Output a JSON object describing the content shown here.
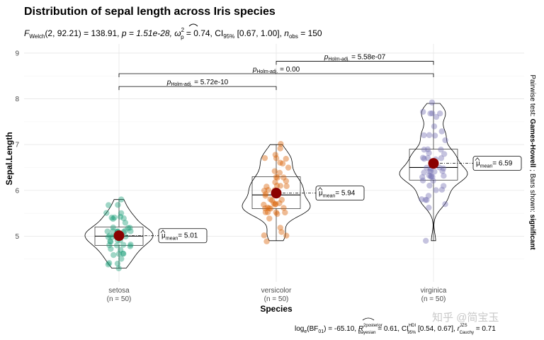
{
  "chart_data": {
    "type": "violin",
    "title": "Distribution of sepal length across Iris species",
    "subtitle": "F_Welch(2, 92.21) = 138.91, p = 1.51e-28, ω̂²_p = 0.74, CI95% [0.67, 1.00], n_obs = 150",
    "subtitle_parts": {
      "f_stat": "F",
      "f_sub": "Welch",
      "f_args": "(2, 92.21) = 138.91, ",
      "p_part": "p = 1.51e-28, ",
      "omega": "ω",
      "omega_sup": "2",
      "omega_sub": "p",
      "omega_val": " = 0.74, CI",
      "ci_sub": "95%",
      "ci_val": " [0.67, 1.00], ",
      "n_obs": "n",
      "n_sub": "obs",
      "n_val": " = 150"
    },
    "xlabel": "Species",
    "ylabel": "Sepal.Length",
    "ylim": [
      4.0,
      9.2
    ],
    "yticks": [
      "5",
      "6",
      "7",
      "8",
      "9"
    ],
    "yticks_values": [
      5,
      6,
      7,
      8,
      9
    ],
    "grid": true,
    "categories": [
      "setosa",
      "versicolor",
      "virginica"
    ],
    "counts": [
      "(n = 50)",
      "(n = 50)",
      "(n = 50)"
    ],
    "colors": [
      "#1B9E77",
      "#D95F02",
      "#7570B3"
    ],
    "mean_color": "#8B0000",
    "means": [
      5.01,
      5.94,
      6.59
    ],
    "mean_labels": [
      "= 5.01",
      "= 5.94",
      "= 6.59"
    ],
    "mean_symbol": "μ",
    "mean_sub": "mean",
    "boxplots": [
      {
        "min": 4.3,
        "q1": 4.8,
        "median": 5.0,
        "q3": 5.2,
        "max": 5.8
      },
      {
        "min": 4.9,
        "q1": 5.6,
        "median": 5.9,
        "q3": 6.3,
        "max": 7.0
      },
      {
        "min": 4.9,
        "q1": 6.225,
        "median": 6.5,
        "q3": 6.9,
        "max": 7.9
      }
    ],
    "points": [
      [
        4.3,
        4.4,
        4.4,
        4.4,
        4.5,
        4.6,
        4.6,
        4.6,
        4.6,
        4.7,
        4.7,
        4.8,
        4.8,
        4.8,
        4.8,
        4.8,
        4.9,
        4.9,
        4.9,
        4.9,
        5.0,
        5.0,
        5.0,
        5.0,
        5.0,
        5.0,
        5.0,
        5.0,
        5.1,
        5.1,
        5.1,
        5.1,
        5.1,
        5.1,
        5.1,
        5.1,
        5.2,
        5.2,
        5.2,
        5.3,
        5.4,
        5.4,
        5.4,
        5.4,
        5.4,
        5.5,
        5.5,
        5.7,
        5.7,
        5.8
      ],
      [
        4.9,
        5.0,
        5.0,
        5.1,
        5.2,
        5.4,
        5.5,
        5.5,
        5.5,
        5.5,
        5.5,
        5.6,
        5.6,
        5.6,
        5.6,
        5.6,
        5.7,
        5.7,
        5.7,
        5.7,
        5.7,
        5.8,
        5.8,
        5.8,
        5.9,
        5.9,
        6.0,
        6.0,
        6.0,
        6.0,
        6.1,
        6.1,
        6.1,
        6.1,
        6.2,
        6.2,
        6.3,
        6.3,
        6.3,
        6.4,
        6.4,
        6.5,
        6.6,
        6.6,
        6.7,
        6.7,
        6.7,
        6.8,
        6.9,
        7.0
      ],
      [
        4.9,
        5.6,
        5.7,
        5.8,
        5.8,
        5.8,
        5.9,
        6.0,
        6.0,
        6.1,
        6.1,
        6.2,
        6.2,
        6.3,
        6.3,
        6.3,
        6.3,
        6.3,
        6.3,
        6.4,
        6.4,
        6.4,
        6.4,
        6.4,
        6.5,
        6.5,
        6.5,
        6.5,
        6.7,
        6.7,
        6.7,
        6.7,
        6.7,
        6.8,
        6.8,
        6.9,
        6.9,
        6.9,
        7.1,
        7.2,
        7.2,
        7.2,
        7.3,
        7.4,
        7.6,
        7.7,
        7.7,
        7.7,
        7.7,
        7.9
      ]
    ],
    "pairwise": [
      {
        "from": 1,
        "to": 2,
        "label_sym": "p",
        "label_sub": "Holm-adj.",
        "label_val": " = 5.58e-07",
        "y": 8.82
      },
      {
        "from": 0,
        "to": 2,
        "label_sym": "p",
        "label_sub": "Holm-adj.",
        "label_val": " = 0.00",
        "y": 8.55
      },
      {
        "from": 0,
        "to": 1,
        "label_sym": "p",
        "label_sub": "Holm-adj.",
        "label_val": " = 5.72e-10",
        "y": 8.27
      }
    ],
    "right_caption": {
      "prefix": "Pairwise test: ",
      "test": "Games-Howell",
      "middle": " ; Bars shown: ",
      "shown": "significant"
    },
    "caption": {
      "log": "log",
      "log_sub": "e",
      "bf": "(BF",
      "bf_sub": "01",
      "bf_val": ") = -65.10, ",
      "r": "R",
      "r_sup": "2posterior",
      "r_sub": "Bayesian",
      "r_val": " = 0.61, CI",
      "ci_sup": "HDI",
      "ci_sub": "95%",
      "ci_val": " [0.54, 0.67], ",
      "rc": "r",
      "rc_sup": "JZS",
      "rc_sub": "Cauchy",
      "rc_val": " = 0.71"
    }
  },
  "watermark": "知乎 @简宝玉"
}
